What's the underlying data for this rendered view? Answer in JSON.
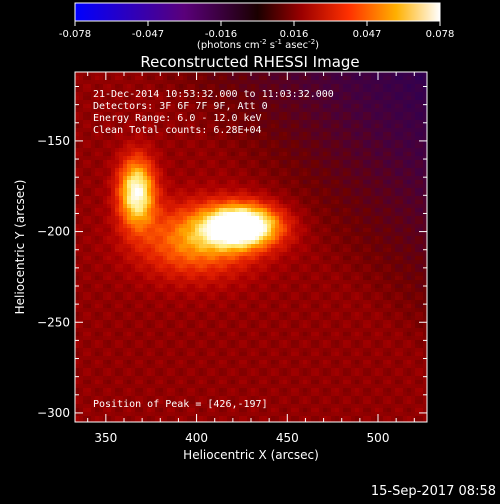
{
  "chart_data": {
    "type": "heatmap",
    "title": "Reconstructed RHESSI Image",
    "xlabel": "Heliocentric X (arcsec)",
    "ylabel": "Heliocentric Y (arcsec)",
    "xlim": [
      333,
      527
    ],
    "ylim": [
      -305,
      -112
    ],
    "xticks": [
      350,
      400,
      450,
      500
    ],
    "yticks": [
      -150,
      -200,
      -250,
      -300
    ],
    "colorbar": {
      "ticks": [
        "-0.078",
        "-0.047",
        "-0.016",
        "0.016",
        "0.047",
        "0.078"
      ],
      "range": [
        -0.078,
        0.078
      ],
      "units_prefix": "(photons cm",
      "units_exp1": "-2",
      "units_mid": " s",
      "units_exp2": "-1",
      "units_mid2": " asec",
      "units_exp3": "-2",
      "units_suffix": ")"
    },
    "annotations": {
      "time": "21-Dec-2014 10:53:32.000 to 11:03:32.000",
      "detectors": "Detectors: 3F 6F 7F 9F, Att 0",
      "energy": "Energy Range: 6.0 - 12.0 keV",
      "clean": "Clean     Total counts: 6.28E+04",
      "peak": "Position of Peak = [426,-197]"
    },
    "peak": {
      "x": 426,
      "y": -197
    },
    "sources": [
      {
        "x": 425,
        "y": -197,
        "sx": 14,
        "sy": 8,
        "amp": 1.0
      },
      {
        "x": 367,
        "y": -178,
        "sx": 7,
        "sy": 13,
        "amp": 0.78
      },
      {
        "x": 400,
        "y": -205,
        "sx": 22,
        "sy": 14,
        "amp": 0.45
      }
    ],
    "background_level": 0.25,
    "footer_date": "15-Sep-2017 08:58"
  }
}
